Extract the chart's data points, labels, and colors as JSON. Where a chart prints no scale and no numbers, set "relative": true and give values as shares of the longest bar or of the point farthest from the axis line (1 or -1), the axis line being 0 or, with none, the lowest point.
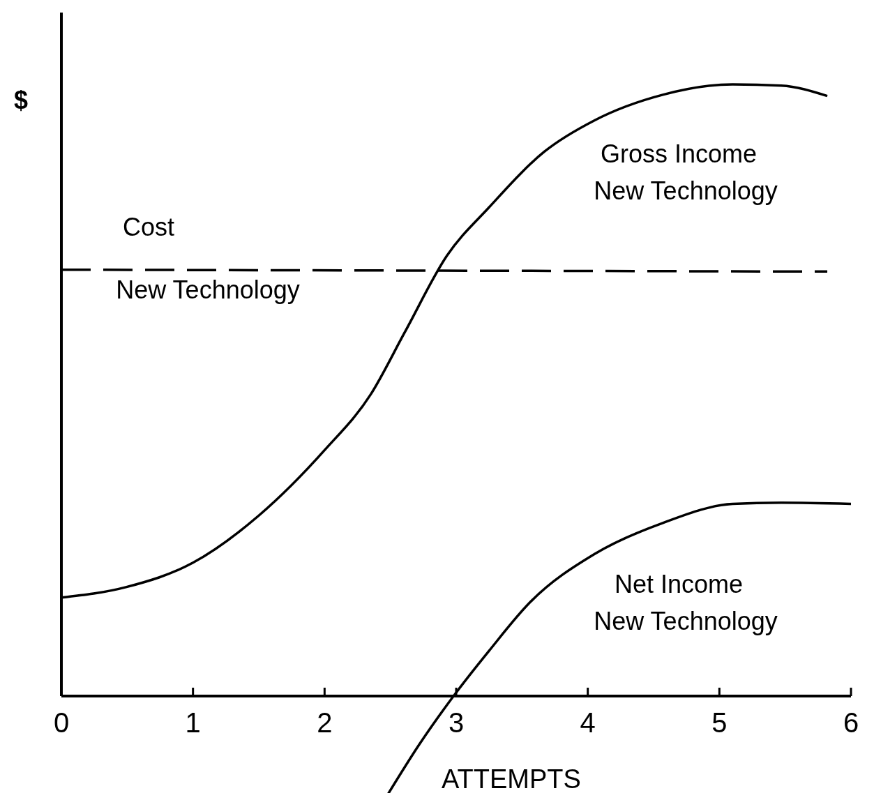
{
  "chart_data": {
    "type": "line",
    "relative": true,
    "xlabel": "ATTEMPTS",
    "ylabel": "$",
    "xlim": [
      0,
      6
    ],
    "xticks": [
      0,
      1,
      2,
      3,
      4,
      5,
      6
    ],
    "line_style": "solid",
    "series": [
      {
        "name": "Cost\nNew Technology",
        "color": "#000000",
        "line_style": "dashed",
        "x": [
          0,
          5.82
        ],
        "values": [
          0.697,
          0.694
        ]
      },
      {
        "name": "Gross Income\nNew Technology",
        "color": "#000000",
        "x": [
          0,
          0.49,
          1.0,
          1.5,
          2.0,
          2.35,
          2.61,
          2.93,
          3.25,
          3.67,
          4.05,
          4.57,
          5.1,
          5.47,
          5.82
        ],
        "values": [
          0.161,
          0.178,
          0.218,
          0.295,
          0.402,
          0.493,
          0.595,
          0.72,
          0.799,
          0.89,
          0.941,
          0.983,
          1.0,
          0.998,
          0.981
        ]
      },
      {
        "name": "Net Income\nNew Technology",
        "color": "#000000",
        "x": [
          2.48,
          2.72,
          2.98,
          3.25,
          3.56,
          4.05,
          4.57,
          5.1,
          5.47,
          6.0
        ],
        "values": [
          -0.161,
          -0.079,
          0,
          0.074,
          0.153,
          0.232,
          0.283,
          0.314,
          0.316,
          0.314
        ]
      }
    ]
  }
}
